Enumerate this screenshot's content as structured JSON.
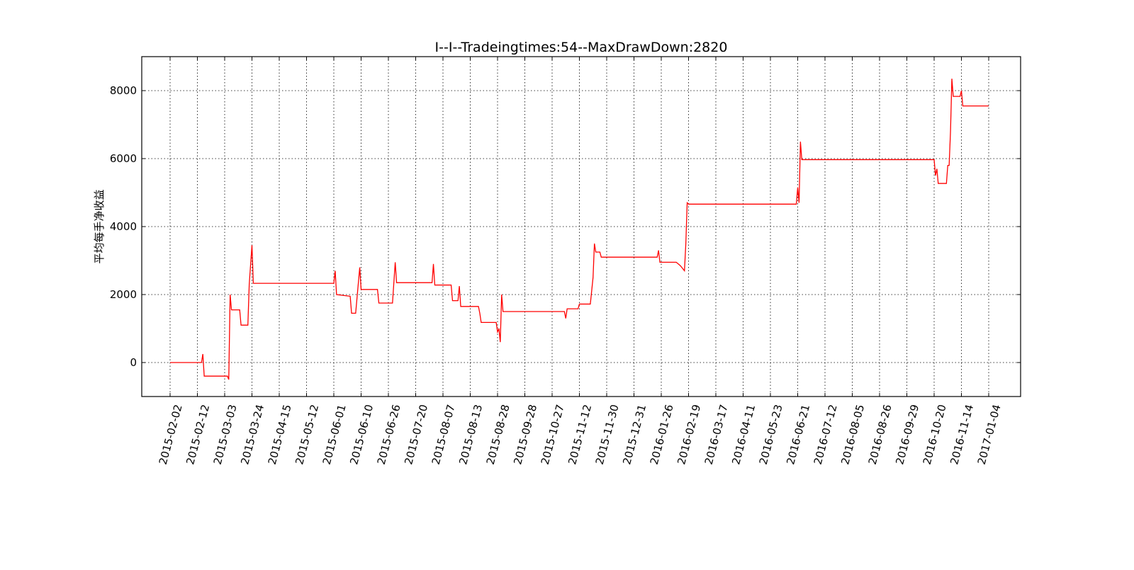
{
  "chart_data": {
    "type": "line",
    "title": "I--I--Tradeingtimes:54--MaxDrawDown:2820",
    "xlabel": "",
    "ylabel": "平均每手净收益",
    "ylim": [
      -1000,
      9000
    ],
    "yticks": [
      0,
      2000,
      4000,
      6000,
      8000
    ],
    "grid": true,
    "line_color": "#ff0000",
    "x_tick_labels": [
      "2015-02-02",
      "2015-02-12",
      "2015-03-03",
      "2015-03-24",
      "2015-04-15",
      "2015-05-12",
      "2015-06-01",
      "2015-06-10",
      "2015-06-26",
      "2015-07-20",
      "2015-08-07",
      "2015-08-13",
      "2015-08-28",
      "2015-09-28",
      "2015-10-27",
      "2015-11-12",
      "2015-11-30",
      "2015-12-31",
      "2016-01-26",
      "2016-02-19",
      "2016-03-17",
      "2016-04-11",
      "2016-05-23",
      "2016-06-21",
      "2016-07-12",
      "2016-08-05",
      "2016-08-26",
      "2016-09-29",
      "2016-10-20",
      "2016-11-14",
      "2017-01-04"
    ],
    "series": [
      {
        "points": [
          [
            0.0,
            0
          ],
          [
            1.15,
            0
          ],
          [
            1.2,
            250
          ],
          [
            1.25,
            -400
          ],
          [
            2.1,
            -400
          ],
          [
            2.15,
            -500
          ],
          [
            2.2,
            2000
          ],
          [
            2.25,
            1550
          ],
          [
            2.55,
            1550
          ],
          [
            2.6,
            1100
          ],
          [
            2.85,
            1100
          ],
          [
            2.9,
            2300
          ],
          [
            3.0,
            3450
          ],
          [
            3.05,
            2330
          ],
          [
            6.0,
            2330
          ],
          [
            6.05,
            2700
          ],
          [
            6.1,
            2000
          ],
          [
            6.6,
            1950
          ],
          [
            6.65,
            1450
          ],
          [
            6.8,
            1450
          ],
          [
            6.95,
            2800
          ],
          [
            7.0,
            2150
          ],
          [
            7.6,
            2150
          ],
          [
            7.65,
            1750
          ],
          [
            8.15,
            1750
          ],
          [
            8.25,
            2950
          ],
          [
            8.3,
            2350
          ],
          [
            9.6,
            2350
          ],
          [
            9.65,
            2900
          ],
          [
            9.7,
            2280
          ],
          [
            10.3,
            2280
          ],
          [
            10.35,
            1820
          ],
          [
            10.55,
            1820
          ],
          [
            10.6,
            2250
          ],
          [
            10.65,
            1650
          ],
          [
            11.3,
            1650
          ],
          [
            11.35,
            1450
          ],
          [
            11.4,
            1180
          ],
          [
            11.95,
            1180
          ],
          [
            12.0,
            900
          ],
          [
            12.05,
            1000
          ],
          [
            12.1,
            600
          ],
          [
            12.15,
            2000
          ],
          [
            12.2,
            1500
          ],
          [
            14.45,
            1500
          ],
          [
            14.5,
            1300
          ],
          [
            14.55,
            1580
          ],
          [
            14.95,
            1580
          ],
          [
            15.0,
            1720
          ],
          [
            15.4,
            1720
          ],
          [
            15.5,
            2500
          ],
          [
            15.55,
            3500
          ],
          [
            15.6,
            3250
          ],
          [
            15.75,
            3250
          ],
          [
            15.8,
            3100
          ],
          [
            17.85,
            3100
          ],
          [
            17.9,
            3300
          ],
          [
            17.95,
            2950
          ],
          [
            18.55,
            2950
          ],
          [
            18.7,
            2850
          ],
          [
            18.85,
            2700
          ],
          [
            18.9,
            3500
          ],
          [
            18.95,
            4700
          ],
          [
            19.0,
            4660
          ],
          [
            22.95,
            4660
          ],
          [
            23.0,
            5150
          ],
          [
            23.05,
            4700
          ],
          [
            23.1,
            6500
          ],
          [
            23.15,
            5970
          ],
          [
            28.0,
            5970
          ],
          [
            28.05,
            5500
          ],
          [
            28.1,
            5700
          ],
          [
            28.15,
            5270
          ],
          [
            28.45,
            5270
          ],
          [
            28.5,
            5800
          ],
          [
            28.55,
            5800
          ],
          [
            28.6,
            6800
          ],
          [
            28.65,
            8350
          ],
          [
            28.7,
            7830
          ],
          [
            28.95,
            7830
          ],
          [
            29.0,
            8000
          ],
          [
            29.05,
            7550
          ],
          [
            30.0,
            7550
          ]
        ]
      }
    ]
  }
}
